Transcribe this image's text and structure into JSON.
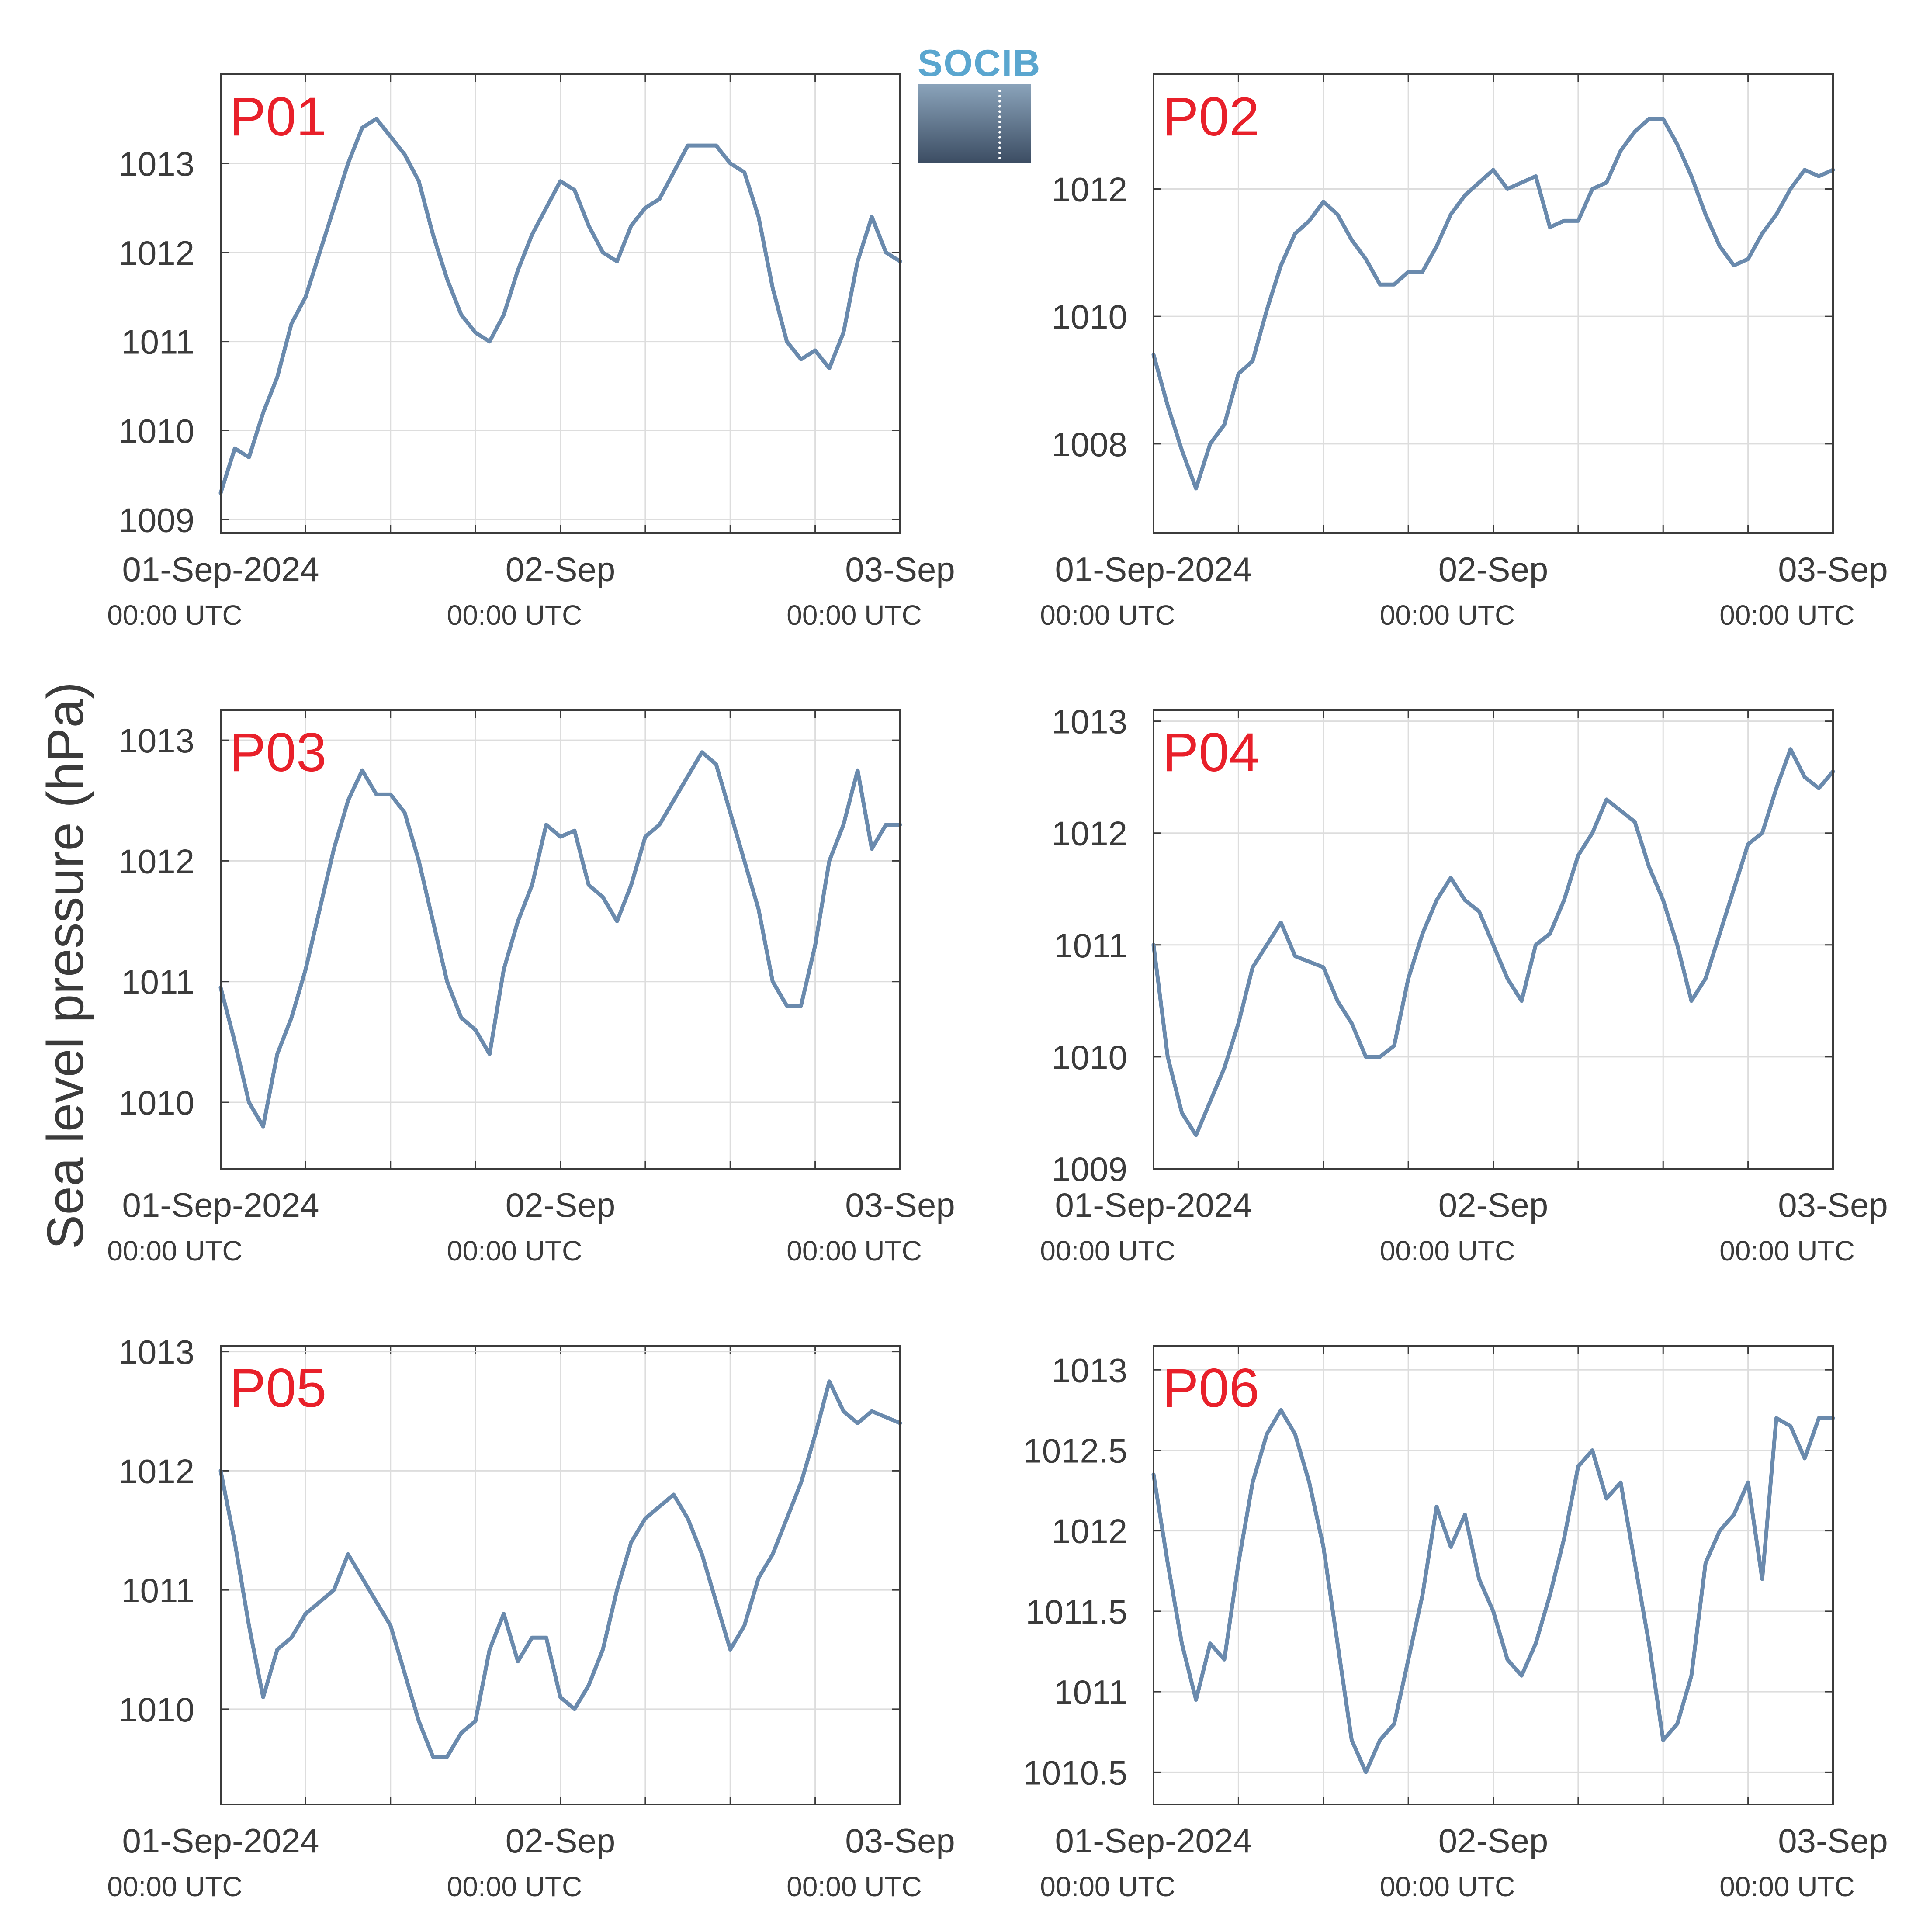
{
  "figure": {
    "ylabel": "Sea level pressure (hPa)",
    "logo_text": "SOCIB",
    "line_color": "#6a8aad",
    "label_color": "#e8202a",
    "grid_color": "#dddddd",
    "axis_color": "#3b3b3b"
  },
  "chart_data": [
    {
      "type": "line",
      "title": "P01",
      "xlim": [
        "2024-09-01 00:00",
        "2024-09-03 00:00"
      ],
      "xticks": [
        {
          "date": "2024-09-01 00:00",
          "label": "01-Sep-2024",
          "sublabel": "00:00 UTC"
        },
        {
          "date": "2024-09-02 00:00",
          "label": "02-Sep",
          "sublabel": "00:00 UTC"
        },
        {
          "date": "2024-09-03 00:00",
          "label": "03-Sep",
          "sublabel": "00:00 UTC"
        }
      ],
      "ylim": [
        1008.85,
        1014.0
      ],
      "yticks": [
        "1009",
        "1010",
        "1011",
        "1012",
        "1013"
      ],
      "grid": true,
      "x": [
        "2024-09-01 00:00",
        "2024-09-01 01:00",
        "2024-09-01 02:00",
        "2024-09-01 03:00",
        "2024-09-01 04:00",
        "2024-09-01 05:00",
        "2024-09-01 06:00",
        "2024-09-01 07:00",
        "2024-09-01 08:00",
        "2024-09-01 09:00",
        "2024-09-01 10:00",
        "2024-09-01 11:00",
        "2024-09-01 12:00",
        "2024-09-01 13:00",
        "2024-09-01 14:00",
        "2024-09-01 15:00",
        "2024-09-01 16:00",
        "2024-09-01 17:00",
        "2024-09-01 18:00",
        "2024-09-01 19:00",
        "2024-09-01 20:00",
        "2024-09-01 21:00",
        "2024-09-01 22:00",
        "2024-09-01 23:00",
        "2024-09-02 00:00",
        "2024-09-02 01:00",
        "2024-09-02 02:00",
        "2024-09-02 03:00",
        "2024-09-02 04:00",
        "2024-09-02 05:00",
        "2024-09-02 06:00",
        "2024-09-02 07:00",
        "2024-09-02 08:00",
        "2024-09-02 09:00",
        "2024-09-02 10:00",
        "2024-09-02 11:00",
        "2024-09-02 12:00",
        "2024-09-02 13:00",
        "2024-09-02 14:00",
        "2024-09-02 15:00",
        "2024-09-02 16:00",
        "2024-09-02 17:00",
        "2024-09-02 18:00",
        "2024-09-02 19:00",
        "2024-09-02 20:00",
        "2024-09-02 21:00",
        "2024-09-02 22:00",
        "2024-09-02 23:00",
        "2024-09-03 00:00"
      ],
      "series": [
        {
          "values": [
            1009.3,
            1009.8,
            1009.7,
            1010.2,
            1010.6,
            1011.2,
            1011.5,
            1012.0,
            1012.5,
            1013.0,
            1013.4,
            1013.5,
            1013.3,
            1013.1,
            1012.8,
            1012.2,
            1011.7,
            1011.3,
            1011.1,
            1011.0,
            1011.3,
            1011.8,
            1012.2,
            1012.5,
            1012.8,
            1012.7,
            1012.3,
            1012.0,
            1011.9,
            1012.3,
            1012.5,
            1012.6,
            1012.9,
            1013.2,
            1013.2,
            1013.2,
            1013.0,
            1012.9,
            1012.4,
            1011.6,
            1011.0,
            1010.8,
            1010.9,
            1010.7,
            1011.1,
            1011.9,
            1012.4,
            1012.0,
            1011.9
          ]
        }
      ]
    },
    {
      "type": "line",
      "title": "P02",
      "xlim": [
        "2024-09-01 00:00",
        "2024-09-03 00:00"
      ],
      "xticks": [
        {
          "date": "2024-09-01 00:00",
          "label": "01-Sep-2024",
          "sublabel": "00:00 UTC"
        },
        {
          "date": "2024-09-02 00:00",
          "label": "02-Sep",
          "sublabel": "00:00 UTC"
        },
        {
          "date": "2024-09-03 00:00",
          "label": "03-Sep",
          "sublabel": "00:00 UTC"
        }
      ],
      "ylim": [
        1006.6,
        1013.8
      ],
      "yticks": [
        "1008",
        "1010",
        "1012"
      ],
      "grid": true,
      "x": [
        "2024-09-01 00:00",
        "2024-09-01 01:00",
        "2024-09-01 02:00",
        "2024-09-01 03:00",
        "2024-09-01 04:00",
        "2024-09-01 05:00",
        "2024-09-01 06:00",
        "2024-09-01 07:00",
        "2024-09-01 08:00",
        "2024-09-01 09:00",
        "2024-09-01 10:00",
        "2024-09-01 11:00",
        "2024-09-01 12:00",
        "2024-09-01 13:00",
        "2024-09-01 14:00",
        "2024-09-01 15:00",
        "2024-09-01 16:00",
        "2024-09-01 17:00",
        "2024-09-01 18:00",
        "2024-09-01 19:00",
        "2024-09-01 20:00",
        "2024-09-01 21:00",
        "2024-09-01 22:00",
        "2024-09-01 23:00",
        "2024-09-02 00:00",
        "2024-09-02 01:00",
        "2024-09-02 02:00",
        "2024-09-02 03:00",
        "2024-09-02 04:00",
        "2024-09-02 05:00",
        "2024-09-02 06:00",
        "2024-09-02 07:00",
        "2024-09-02 08:00",
        "2024-09-02 09:00",
        "2024-09-02 10:00",
        "2024-09-02 11:00",
        "2024-09-02 12:00",
        "2024-09-02 13:00",
        "2024-09-02 14:00",
        "2024-09-02 15:00",
        "2024-09-02 16:00",
        "2024-09-02 17:00",
        "2024-09-02 18:00",
        "2024-09-02 19:00",
        "2024-09-02 20:00",
        "2024-09-02 21:00",
        "2024-09-02 22:00",
        "2024-09-02 23:00",
        "2024-09-03 00:00"
      ],
      "series": [
        {
          "values": [
            1009.4,
            1008.6,
            1007.9,
            1007.3,
            1008.0,
            1008.3,
            1009.1,
            1009.3,
            1010.1,
            1010.8,
            1011.3,
            1011.5,
            1011.8,
            1011.6,
            1011.2,
            1010.9,
            1010.5,
            1010.5,
            1010.7,
            1010.7,
            1011.1,
            1011.6,
            1011.9,
            1012.1,
            1012.3,
            1012.0,
            1012.1,
            1012.2,
            1011.4,
            1011.5,
            1011.5,
            1012.0,
            1012.1,
            1012.6,
            1012.9,
            1013.1,
            1013.1,
            1012.7,
            1012.2,
            1011.6,
            1011.1,
            1010.8,
            1010.9,
            1011.3,
            1011.6,
            1012.0,
            1012.3,
            1012.2,
            1012.3
          ]
        }
      ]
    },
    {
      "type": "line",
      "title": "P03",
      "xlim": [
        "2024-09-01 00:00",
        "2024-09-03 00:00"
      ],
      "xticks": [
        {
          "date": "2024-09-01 00:00",
          "label": "01-Sep-2024",
          "sublabel": "00:00 UTC"
        },
        {
          "date": "2024-09-02 00:00",
          "label": "02-Sep",
          "sublabel": "00:00 UTC"
        },
        {
          "date": "2024-09-03 00:00",
          "label": "03-Sep",
          "sublabel": "00:00 UTC"
        }
      ],
      "ylim": [
        1009.45,
        1013.25
      ],
      "yticks": [
        "1010",
        "1011",
        "1012",
        "1013"
      ],
      "grid": true,
      "x": [
        "2024-09-01 00:00",
        "2024-09-01 01:00",
        "2024-09-01 02:00",
        "2024-09-01 03:00",
        "2024-09-01 04:00",
        "2024-09-01 05:00",
        "2024-09-01 06:00",
        "2024-09-01 07:00",
        "2024-09-01 08:00",
        "2024-09-01 09:00",
        "2024-09-01 10:00",
        "2024-09-01 11:00",
        "2024-09-01 12:00",
        "2024-09-01 13:00",
        "2024-09-01 14:00",
        "2024-09-01 15:00",
        "2024-09-01 16:00",
        "2024-09-01 17:00",
        "2024-09-01 18:00",
        "2024-09-01 19:00",
        "2024-09-01 20:00",
        "2024-09-01 21:00",
        "2024-09-01 22:00",
        "2024-09-01 23:00",
        "2024-09-02 00:00",
        "2024-09-02 01:00",
        "2024-09-02 02:00",
        "2024-09-02 03:00",
        "2024-09-02 04:00",
        "2024-09-02 05:00",
        "2024-09-02 06:00",
        "2024-09-02 07:00",
        "2024-09-02 08:00",
        "2024-09-02 09:00",
        "2024-09-02 10:00",
        "2024-09-02 11:00",
        "2024-09-02 12:00",
        "2024-09-02 13:00",
        "2024-09-02 14:00",
        "2024-09-02 15:00",
        "2024-09-02 16:00",
        "2024-09-02 17:00",
        "2024-09-02 18:00",
        "2024-09-02 19:00",
        "2024-09-02 20:00",
        "2024-09-02 21:00",
        "2024-09-02 22:00",
        "2024-09-02 23:00",
        "2024-09-03 00:00"
      ],
      "series": [
        {
          "values": [
            1010.95,
            1010.5,
            1010.0,
            1009.8,
            1010.4,
            1010.7,
            1011.1,
            1011.6,
            1012.1,
            1012.5,
            1012.75,
            1012.55,
            1012.55,
            1012.4,
            1012.0,
            1011.5,
            1011.0,
            1010.7,
            1010.6,
            1010.4,
            1011.1,
            1011.5,
            1011.8,
            1012.3,
            1012.2,
            1012.25,
            1011.8,
            1011.7,
            1011.5,
            1011.8,
            1012.2,
            1012.3,
            1012.5,
            1012.7,
            1012.9,
            1012.8,
            1012.4,
            1012.0,
            1011.6,
            1011.0,
            1010.8,
            1010.8,
            1011.3,
            1012.0,
            1012.3,
            1012.75,
            1012.1,
            1012.3,
            1012.3
          ]
        }
      ]
    },
    {
      "type": "line",
      "title": "P04",
      "xlim": [
        "2024-09-01 00:00",
        "2024-09-03 00:00"
      ],
      "xticks": [
        {
          "date": "2024-09-01 00:00",
          "label": "01-Sep-2024",
          "sublabel": "00:00 UTC"
        },
        {
          "date": "2024-09-02 00:00",
          "label": "02-Sep",
          "sublabel": "00:00 UTC"
        },
        {
          "date": "2024-09-03 00:00",
          "label": "03-Sep",
          "sublabel": "00:00 UTC"
        }
      ],
      "ylim": [
        1009.0,
        1013.1
      ],
      "yticks": [
        "1009",
        "1010",
        "1011",
        "1012",
        "1013"
      ],
      "grid": true,
      "x": [
        "2024-09-01 00:00",
        "2024-09-01 01:00",
        "2024-09-01 02:00",
        "2024-09-01 03:00",
        "2024-09-01 04:00",
        "2024-09-01 05:00",
        "2024-09-01 06:00",
        "2024-09-01 07:00",
        "2024-09-01 08:00",
        "2024-09-01 09:00",
        "2024-09-01 10:00",
        "2024-09-01 11:00",
        "2024-09-01 12:00",
        "2024-09-01 13:00",
        "2024-09-01 14:00",
        "2024-09-01 15:00",
        "2024-09-01 16:00",
        "2024-09-01 17:00",
        "2024-09-01 18:00",
        "2024-09-01 19:00",
        "2024-09-01 20:00",
        "2024-09-01 21:00",
        "2024-09-01 22:00",
        "2024-09-01 23:00",
        "2024-09-02 00:00",
        "2024-09-02 01:00",
        "2024-09-02 02:00",
        "2024-09-02 03:00",
        "2024-09-02 04:00",
        "2024-09-02 05:00",
        "2024-09-02 06:00",
        "2024-09-02 07:00",
        "2024-09-02 08:00",
        "2024-09-02 09:00",
        "2024-09-02 10:00",
        "2024-09-02 11:00",
        "2024-09-02 12:00",
        "2024-09-02 13:00",
        "2024-09-02 14:00",
        "2024-09-02 15:00",
        "2024-09-02 16:00",
        "2024-09-02 17:00",
        "2024-09-02 18:00",
        "2024-09-02 19:00",
        "2024-09-02 20:00",
        "2024-09-02 21:00",
        "2024-09-02 22:00",
        "2024-09-02 23:00",
        "2024-09-03 00:00"
      ],
      "series": [
        {
          "values": [
            1011.0,
            1010.0,
            1009.5,
            1009.3,
            1009.6,
            1009.9,
            1010.3,
            1010.8,
            1011.0,
            1011.2,
            1010.9,
            1010.85,
            1010.8,
            1010.5,
            1010.3,
            1010.0,
            1010.0,
            1010.1,
            1010.7,
            1011.1,
            1011.4,
            1011.6,
            1011.4,
            1011.3,
            1011.0,
            1010.7,
            1010.5,
            1011.0,
            1011.1,
            1011.4,
            1011.8,
            1012.0,
            1012.3,
            1012.2,
            1012.1,
            1011.7,
            1011.4,
            1011.0,
            1010.5,
            1010.7,
            1011.1,
            1011.5,
            1011.9,
            1012.0,
            1012.4,
            1012.75,
            1012.5,
            1012.4,
            1012.55
          ]
        }
      ]
    },
    {
      "type": "line",
      "title": "P05",
      "xlim": [
        "2024-09-01 00:00",
        "2024-09-03 00:00"
      ],
      "xticks": [
        {
          "date": "2024-09-01 00:00",
          "label": "01-Sep-2024",
          "sublabel": "00:00 UTC"
        },
        {
          "date": "2024-09-02 00:00",
          "label": "02-Sep",
          "sublabel": "00:00 UTC"
        },
        {
          "date": "2024-09-03 00:00",
          "label": "03-Sep",
          "sublabel": "00:00 UTC"
        }
      ],
      "ylim": [
        1009.2,
        1013.05
      ],
      "yticks": [
        "1010",
        "1011",
        "1012",
        "1013"
      ],
      "grid": true,
      "x": [
        "2024-09-01 00:00",
        "2024-09-01 01:00",
        "2024-09-01 02:00",
        "2024-09-01 03:00",
        "2024-09-01 04:00",
        "2024-09-01 05:00",
        "2024-09-01 06:00",
        "2024-09-01 07:00",
        "2024-09-01 08:00",
        "2024-09-01 09:00",
        "2024-09-01 10:00",
        "2024-09-01 11:00",
        "2024-09-01 12:00",
        "2024-09-01 13:00",
        "2024-09-01 14:00",
        "2024-09-01 15:00",
        "2024-09-01 16:00",
        "2024-09-01 17:00",
        "2024-09-01 18:00",
        "2024-09-01 19:00",
        "2024-09-01 20:00",
        "2024-09-01 21:00",
        "2024-09-01 22:00",
        "2024-09-01 23:00",
        "2024-09-02 00:00",
        "2024-09-02 01:00",
        "2024-09-02 02:00",
        "2024-09-02 03:00",
        "2024-09-02 04:00",
        "2024-09-02 05:00",
        "2024-09-02 06:00",
        "2024-09-02 07:00",
        "2024-09-02 08:00",
        "2024-09-02 09:00",
        "2024-09-02 10:00",
        "2024-09-02 11:00",
        "2024-09-02 12:00",
        "2024-09-02 13:00",
        "2024-09-02 14:00",
        "2024-09-02 15:00",
        "2024-09-02 16:00",
        "2024-09-02 17:00",
        "2024-09-02 18:00",
        "2024-09-02 19:00",
        "2024-09-02 20:00",
        "2024-09-02 21:00",
        "2024-09-02 22:00",
        "2024-09-02 23:00",
        "2024-09-03 00:00"
      ],
      "series": [
        {
          "values": [
            1012.0,
            1011.4,
            1010.7,
            1010.1,
            1010.5,
            1010.6,
            1010.8,
            1010.9,
            1011.0,
            1011.3,
            1011.1,
            1010.9,
            1010.7,
            1010.3,
            1009.9,
            1009.6,
            1009.6,
            1009.8,
            1009.9,
            1010.5,
            1010.8,
            1010.4,
            1010.6,
            1010.6,
            1010.1,
            1010.0,
            1010.2,
            1010.5,
            1011.0,
            1011.4,
            1011.6,
            1011.7,
            1011.8,
            1011.6,
            1011.3,
            1010.9,
            1010.5,
            1010.7,
            1011.1,
            1011.3,
            1011.6,
            1011.9,
            1012.3,
            1012.75,
            1012.5,
            1012.4,
            1012.5,
            1012.45,
            1012.4
          ]
        }
      ]
    },
    {
      "type": "line",
      "title": "P06",
      "xlim": [
        "2024-09-01 00:00",
        "2024-09-03 00:00"
      ],
      "xticks": [
        {
          "date": "2024-09-01 00:00",
          "label": "01-Sep-2024",
          "sublabel": "00:00 UTC"
        },
        {
          "date": "2024-09-02 00:00",
          "label": "02-Sep",
          "sublabel": "00:00 UTC"
        },
        {
          "date": "2024-09-03 00:00",
          "label": "03-Sep",
          "sublabel": "00:00 UTC"
        }
      ],
      "ylim": [
        1010.3,
        1013.15
      ],
      "yticks": [
        "1010.5",
        "1011",
        "1011.5",
        "1012",
        "1012.5",
        "1013"
      ],
      "grid": true,
      "x": [
        "2024-09-01 00:00",
        "2024-09-01 01:00",
        "2024-09-01 02:00",
        "2024-09-01 03:00",
        "2024-09-01 04:00",
        "2024-09-01 05:00",
        "2024-09-01 06:00",
        "2024-09-01 07:00",
        "2024-09-01 08:00",
        "2024-09-01 09:00",
        "2024-09-01 10:00",
        "2024-09-01 11:00",
        "2024-09-01 12:00",
        "2024-09-01 13:00",
        "2024-09-01 14:00",
        "2024-09-01 15:00",
        "2024-09-01 16:00",
        "2024-09-01 17:00",
        "2024-09-01 18:00",
        "2024-09-01 19:00",
        "2024-09-01 20:00",
        "2024-09-01 21:00",
        "2024-09-01 22:00",
        "2024-09-01 23:00",
        "2024-09-02 00:00",
        "2024-09-02 01:00",
        "2024-09-02 02:00",
        "2024-09-02 03:00",
        "2024-09-02 04:00",
        "2024-09-02 05:00",
        "2024-09-02 06:00",
        "2024-09-02 07:00",
        "2024-09-02 08:00",
        "2024-09-02 09:00",
        "2024-09-02 10:00",
        "2024-09-02 11:00",
        "2024-09-02 12:00",
        "2024-09-02 13:00",
        "2024-09-02 14:00",
        "2024-09-02 15:00",
        "2024-09-02 16:00",
        "2024-09-02 17:00",
        "2024-09-02 18:00",
        "2024-09-02 19:00",
        "2024-09-02 20:00",
        "2024-09-02 21:00",
        "2024-09-02 22:00",
        "2024-09-02 23:00",
        "2024-09-03 00:00"
      ],
      "series": [
        {
          "values": [
            1012.35,
            1011.8,
            1011.3,
            1010.95,
            1011.3,
            1011.2,
            1011.8,
            1012.3,
            1012.6,
            1012.75,
            1012.6,
            1012.3,
            1011.9,
            1011.3,
            1010.7,
            1010.5,
            1010.7,
            1010.8,
            1011.2,
            1011.6,
            1012.15,
            1011.9,
            1012.1,
            1011.7,
            1011.5,
            1011.2,
            1011.1,
            1011.3,
            1011.6,
            1011.95,
            1012.4,
            1012.5,
            1012.2,
            1012.3,
            1011.8,
            1011.3,
            1010.7,
            1010.8,
            1011.1,
            1011.8,
            1012.0,
            1012.1,
            1012.3,
            1011.7,
            1012.7,
            1012.65,
            1012.45,
            1012.7,
            1012.7
          ]
        }
      ]
    }
  ]
}
